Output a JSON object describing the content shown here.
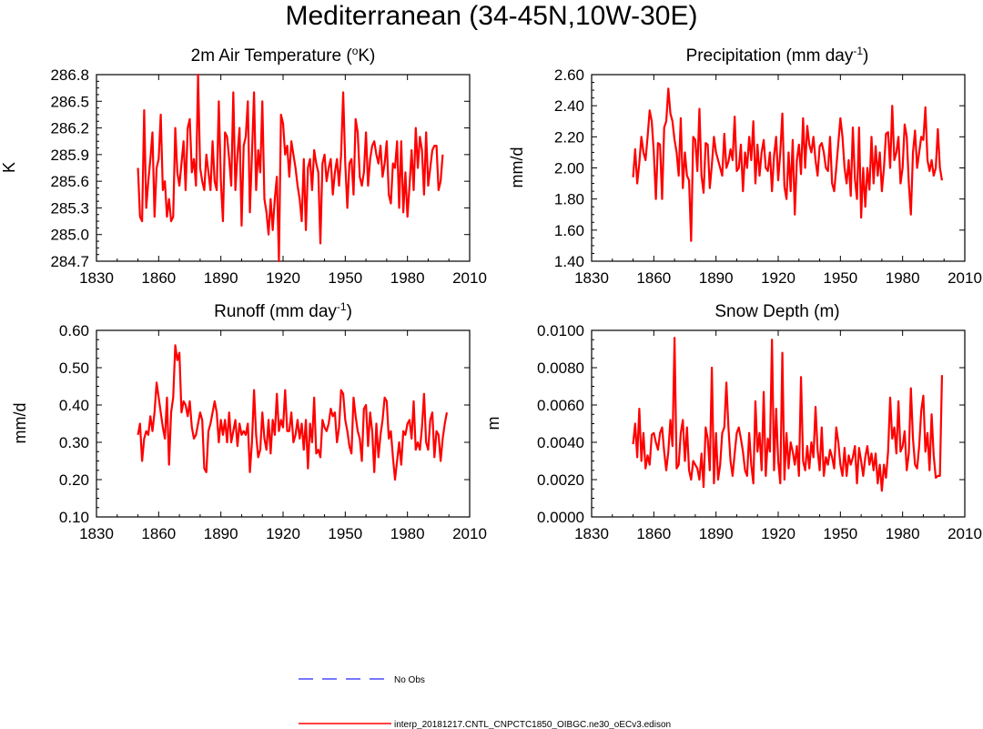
{
  "title": "Mediterranean (34-45N,10W-30E)",
  "legend": [
    {
      "label": "No Obs",
      "color": "#4a4aff",
      "style": "dashed"
    },
    {
      "label": "interp_20181217.CNTL_CNPCTC1850_OIBGC.ne30_oECv3.edison",
      "color": "#ff0000",
      "style": "solid"
    }
  ],
  "chart_data": [
    {
      "type": "line",
      "title_main": "2m Air Temperature (",
      "title_sup": "o",
      "title_end": "K)",
      "xlabel": "",
      "ylabel": "K",
      "xlim": [
        1830,
        2010
      ],
      "ylim": [
        284.7,
        286.8
      ],
      "xticks": [
        1830,
        1860,
        1890,
        1920,
        1950,
        1980,
        2010
      ],
      "yticks": [
        "284.7",
        "285.0",
        "285.3",
        "285.6",
        "285.9",
        "286.2",
        "286.5",
        "286.8"
      ],
      "x_start": 1850,
      "series": [
        {
          "name": "interp_20181217.CNTL_CNPCTC1850_OIBGC.ne30_oECv3.edison",
          "values": [
            285.75,
            285.2,
            285.15,
            286.4,
            285.3,
            285.6,
            285.85,
            286.15,
            285.2,
            285.75,
            285.85,
            286.35,
            285.5,
            285.6,
            285.2,
            285.4,
            285.15,
            285.2,
            286.2,
            285.7,
            285.55,
            285.8,
            286.05,
            285.5,
            286.2,
            286.3,
            285.7,
            285.85,
            285.55,
            286.8,
            285.75,
            285.6,
            285.5,
            285.9,
            285.7,
            285.5,
            286.05,
            285.6,
            285.5,
            286.5,
            285.6,
            285.15,
            286.15,
            286.1,
            285.85,
            285.55,
            286.6,
            285.5,
            285.9,
            286.2,
            285.1,
            286.0,
            286.1,
            286.5,
            285.25,
            285.9,
            286.6,
            285.5,
            285.95,
            285.7,
            286.5,
            285.4,
            285.25,
            285.0,
            285.4,
            285.05,
            285.4,
            285.65,
            284.7,
            286.35,
            286.25,
            285.9,
            286.0,
            285.65,
            286.05,
            285.9,
            285.75,
            285.55,
            285.4,
            285.15,
            285.85,
            285.05,
            285.75,
            285.85,
            285.5,
            285.95,
            285.8,
            285.7,
            284.9,
            285.8,
            285.9,
            285.6,
            285.75,
            285.85,
            285.45,
            285.7,
            285.85,
            285.55,
            285.9,
            286.6,
            285.8,
            285.3,
            285.8,
            285.85,
            285.45,
            286.3,
            286.15,
            285.65,
            285.55,
            285.7,
            286.15,
            285.55,
            285.85,
            286.0,
            286.05,
            285.9,
            285.8,
            286.0,
            285.65,
            285.8,
            286.05,
            285.45,
            285.35,
            285.8,
            285.75,
            286.05,
            285.3,
            286.05,
            285.25,
            285.7,
            285.2,
            285.55,
            285.95,
            285.5,
            286.2,
            285.75,
            286.1,
            285.95,
            285.45,
            286.15,
            285.55,
            285.75,
            285.95,
            286.0,
            286.0,
            285.5,
            285.6,
            285.9
          ]
        }
      ]
    },
    {
      "type": "line",
      "title_main": "Precipitation (mm day",
      "title_sup": "-1",
      "title_end": ")",
      "xlabel": "",
      "ylabel": "mm/d",
      "xlim": [
        1830,
        2010
      ],
      "ylim": [
        1.4,
        2.6
      ],
      "xticks": [
        1830,
        1860,
        1890,
        1920,
        1950,
        1980,
        2010
      ],
      "yticks": [
        "1.40",
        "1.60",
        "1.80",
        "2.00",
        "2.20",
        "2.40",
        "2.60"
      ],
      "x_start": 1850,
      "series": [
        {
          "name": "interp_20181217.CNTL_CNPCTC1850_OIBGC.ne30_oECv3.edison",
          "values": [
            1.94,
            2.12,
            1.9,
            2.03,
            2.2,
            2.1,
            2.05,
            2.2,
            2.37,
            2.3,
            2.1,
            1.8,
            2.16,
            2.15,
            1.8,
            2.26,
            2.3,
            2.51,
            2.35,
            2.3,
            2.18,
            2.1,
            1.95,
            2.32,
            1.87,
            2.1,
            1.95,
            1.92,
            1.53,
            2.2,
            2.18,
            1.98,
            2.38,
            1.95,
            1.84,
            2.16,
            2.15,
            1.87,
            2.02,
            2.2,
            2.1,
            2.05,
            2.0,
            1.95,
            2.22,
            2.0,
            2.04,
            2.12,
            2.05,
            2.33,
            1.98,
            2.0,
            2.15,
            1.85,
            2.1,
            2.0,
            2.2,
            2.05,
            2.3,
            1.9,
            2.15,
            1.95,
            2.1,
            2.18,
            2.0,
            1.98,
            2.1,
            1.85,
            2.08,
            2.2,
            1.92,
            2.1,
            2.35,
            1.88,
            1.8,
            2.1,
            1.85,
            2.18,
            1.7,
            2.05,
            2.15,
            1.96,
            2.32,
            2.0,
            2.27,
            2.15,
            2.1,
            2.2,
            2.05,
            1.95,
            2.14,
            2.16,
            2.1,
            2.0,
            1.98,
            2.2,
            1.9,
            1.85,
            2.0,
            2.16,
            2.32,
            2.2,
            2.0,
            1.9,
            2.05,
            1.82,
            2.26,
            1.93,
            1.8,
            2.26,
            1.68,
            2.0,
            1.75,
            2.0,
            1.86,
            2.2,
            1.9,
            2.14,
            1.95,
            2.1,
            1.85,
            2.0,
            2.22,
            2.23,
            2.0,
            2.4,
            2.05,
            2.1,
            2.2,
            1.9,
            2.0,
            2.28,
            2.2,
            1.9,
            1.7,
            2.1,
            2.24,
            2.0,
            2.1,
            2.2,
            2.18,
            2.39,
            2.05,
            1.98,
            2.05,
            1.95,
            2.0,
            2.25,
            2.0,
            1.92
          ]
        }
      ]
    },
    {
      "type": "line",
      "title_main": "Runoff (mm day",
      "title_sup": "-1",
      "title_end": ")",
      "xlabel": "",
      "ylabel": "mm/d",
      "xlim": [
        1830,
        2010
      ],
      "ylim": [
        0.1,
        0.6
      ],
      "xticks": [
        1830,
        1860,
        1890,
        1920,
        1950,
        1980,
        2010
      ],
      "yticks": [
        "0.10",
        "0.20",
        "0.30",
        "0.40",
        "0.50",
        "0.60"
      ],
      "x_start": 1850,
      "series": [
        {
          "name": "interp_20181217.CNTL_CNPCTC1850_OIBGC.ne30_oECv3.edison",
          "values": [
            0.32,
            0.35,
            0.25,
            0.31,
            0.33,
            0.32,
            0.37,
            0.33,
            0.38,
            0.46,
            0.42,
            0.38,
            0.34,
            0.31,
            0.42,
            0.24,
            0.38,
            0.42,
            0.56,
            0.52,
            0.54,
            0.38,
            0.41,
            0.4,
            0.37,
            0.41,
            0.34,
            0.31,
            0.32,
            0.35,
            0.38,
            0.36,
            0.23,
            0.22,
            0.33,
            0.35,
            0.38,
            0.41,
            0.38,
            0.3,
            0.36,
            0.32,
            0.36,
            0.3,
            0.38,
            0.3,
            0.33,
            0.36,
            0.29,
            0.35,
            0.32,
            0.33,
            0.32,
            0.35,
            0.22,
            0.3,
            0.44,
            0.32,
            0.26,
            0.28,
            0.38,
            0.31,
            0.28,
            0.36,
            0.27,
            0.36,
            0.32,
            0.43,
            0.33,
            0.36,
            0.34,
            0.44,
            0.33,
            0.33,
            0.38,
            0.3,
            0.32,
            0.36,
            0.31,
            0.35,
            0.28,
            0.36,
            0.23,
            0.35,
            0.3,
            0.42,
            0.27,
            0.28,
            0.26,
            0.36,
            0.34,
            0.33,
            0.35,
            0.39,
            0.37,
            0.38,
            0.3,
            0.34,
            0.44,
            0.43,
            0.36,
            0.33,
            0.29,
            0.27,
            0.42,
            0.37,
            0.33,
            0.31,
            0.25,
            0.39,
            0.4,
            0.29,
            0.38,
            0.33,
            0.22,
            0.35,
            0.26,
            0.32,
            0.36,
            0.42,
            0.41,
            0.31,
            0.33,
            0.26,
            0.2,
            0.25,
            0.3,
            0.24,
            0.33,
            0.32,
            0.35,
            0.36,
            0.31,
            0.41,
            0.28,
            0.3,
            0.28,
            0.34,
            0.43,
            0.3,
            0.28,
            0.36,
            0.38,
            0.26,
            0.33,
            0.32,
            0.25,
            0.31,
            0.35,
            0.38
          ]
        }
      ]
    },
    {
      "type": "line",
      "title_main": "Snow Depth (m)",
      "title_sup": "",
      "title_end": "",
      "xlabel": "",
      "ylabel": "m",
      "xlim": [
        1830,
        2010
      ],
      "ylim": [
        0.0,
        0.01
      ],
      "xticks": [
        1830,
        1860,
        1890,
        1920,
        1950,
        1980,
        2010
      ],
      "yticks": [
        "0.0000",
        "0.0020",
        "0.0040",
        "0.0060",
        "0.0080",
        "0.0100"
      ],
      "x_start": 1850,
      "series": [
        {
          "name": "interp_20181217.CNTL_CNPCTC1850_OIBGC.ne30_oECv3.edison",
          "values": [
            0.0039,
            0.005,
            0.0032,
            0.0058,
            0.003,
            0.0045,
            0.0026,
            0.0033,
            0.0028,
            0.0044,
            0.0045,
            0.004,
            0.0036,
            0.0045,
            0.0048,
            0.0035,
            0.0025,
            0.0035,
            0.0052,
            0.0038,
            0.0096,
            0.0026,
            0.0028,
            0.0045,
            0.0052,
            0.003,
            0.0048,
            0.0025,
            0.002,
            0.003,
            0.0028,
            0.0026,
            0.002,
            0.0034,
            0.0016,
            0.0048,
            0.0042,
            0.0025,
            0.008,
            0.0018,
            0.0045,
            0.002,
            0.0028,
            0.0045,
            0.0048,
            0.0072,
            0.0048,
            0.003,
            0.0022,
            0.0034,
            0.0045,
            0.0048,
            0.0042,
            0.0035,
            0.0025,
            0.0022,
            0.0045,
            0.0028,
            0.0018,
            0.0062,
            0.0035,
            0.0045,
            0.0025,
            0.0067,
            0.0022,
            0.0042,
            0.0035,
            0.0095,
            0.0025,
            0.0058,
            0.003,
            0.0018,
            0.0088,
            0.002,
            0.0045,
            0.0026,
            0.004,
            0.0035,
            0.0028,
            0.0038,
            0.0022,
            0.0075,
            0.003,
            0.0025,
            0.0038,
            0.0026,
            0.004,
            0.0032,
            0.0059,
            0.0036,
            0.0025,
            0.0048,
            0.0022,
            0.0032,
            0.0028,
            0.0036,
            0.0032,
            0.0026,
            0.0048,
            0.004,
            0.0028,
            0.0022,
            0.0037,
            0.0022,
            0.0033,
            0.0028,
            0.0032,
            0.0038,
            0.0018,
            0.0037,
            0.003,
            0.0022,
            0.0032,
            0.0038,
            0.0028,
            0.0034,
            0.0025,
            0.0034,
            0.0018,
            0.0028,
            0.0014,
            0.0028,
            0.0021,
            0.0035,
            0.0064,
            0.0042,
            0.0048,
            0.0034,
            0.0062,
            0.0035,
            0.0038,
            0.0046,
            0.0025,
            0.0034,
            0.0069,
            0.0042,
            0.0028,
            0.0026,
            0.0038,
            0.0057,
            0.0065,
            0.0035,
            0.0045,
            0.0025,
            0.0055,
            0.0033,
            0.0021,
            0.0022,
            0.0022,
            0.0076
          ]
        }
      ]
    }
  ]
}
